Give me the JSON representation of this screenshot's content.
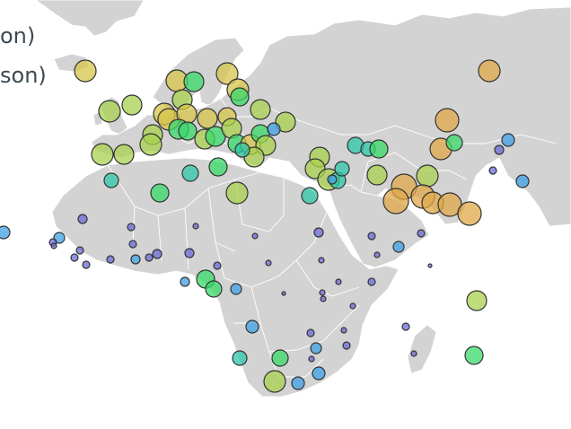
{
  "legend": {
    "line_1": "on)",
    "line_2": "son)"
  },
  "colors": {
    "land": "#d3d3d3",
    "borders": "#ffffff",
    "bubble_stroke": "#333333",
    "purple": "#6b6bd8",
    "blue": "#3ea0e6",
    "teal": "#2cc7a8",
    "green": "#38d96a",
    "lime": "#a8d24e",
    "yellow": "#d7c44a",
    "orange": "#e0a84a"
  },
  "bubbles": [
    {
      "name": "bubble-north-atlantic",
      "color": "yellow",
      "size": "large"
    },
    {
      "name": "bubble-ireland",
      "color": "lime",
      "size": "large"
    },
    {
      "name": "bubble-uk",
      "color": "lime",
      "size": "large"
    },
    {
      "name": "bubble-norway",
      "color": "yellow",
      "size": "large"
    },
    {
      "name": "bubble-sweden",
      "color": "green",
      "size": "large"
    },
    {
      "name": "bubble-finland",
      "color": "yellow",
      "size": "large"
    },
    {
      "name": "bubble-russia-far",
      "color": "orange",
      "size": "large"
    },
    {
      "name": "bubble-kazakhstan",
      "color": "orange",
      "size": "large"
    },
    {
      "name": "bubble-iran",
      "color": "orange",
      "size": "large"
    },
    {
      "name": "bubble-pakistan",
      "color": "orange",
      "size": "large"
    },
    {
      "name": "bubble-saudi",
      "color": "orange",
      "size": "large"
    },
    {
      "name": "bubble-morocco",
      "color": "green",
      "size": "medium"
    },
    {
      "name": "bubble-algeria",
      "color": "teal",
      "size": "medium"
    },
    {
      "name": "bubble-libya",
      "color": "lime",
      "size": "large"
    },
    {
      "name": "bubble-egypt",
      "color": "teal",
      "size": "medium"
    },
    {
      "name": "bubble-cameroon",
      "color": "green",
      "size": "medium"
    },
    {
      "name": "bubble-kenya-east",
      "color": "lime",
      "size": "medium"
    },
    {
      "name": "bubble-madagascar",
      "color": "green",
      "size": "medium"
    },
    {
      "name": "bubble-south-africa",
      "color": "lime",
      "size": "large"
    },
    {
      "name": "bubble-west-africa-small",
      "color": "purple",
      "size": "small"
    },
    {
      "name": "bubble-central-africa-small",
      "color": "blue",
      "size": "small"
    }
  ]
}
